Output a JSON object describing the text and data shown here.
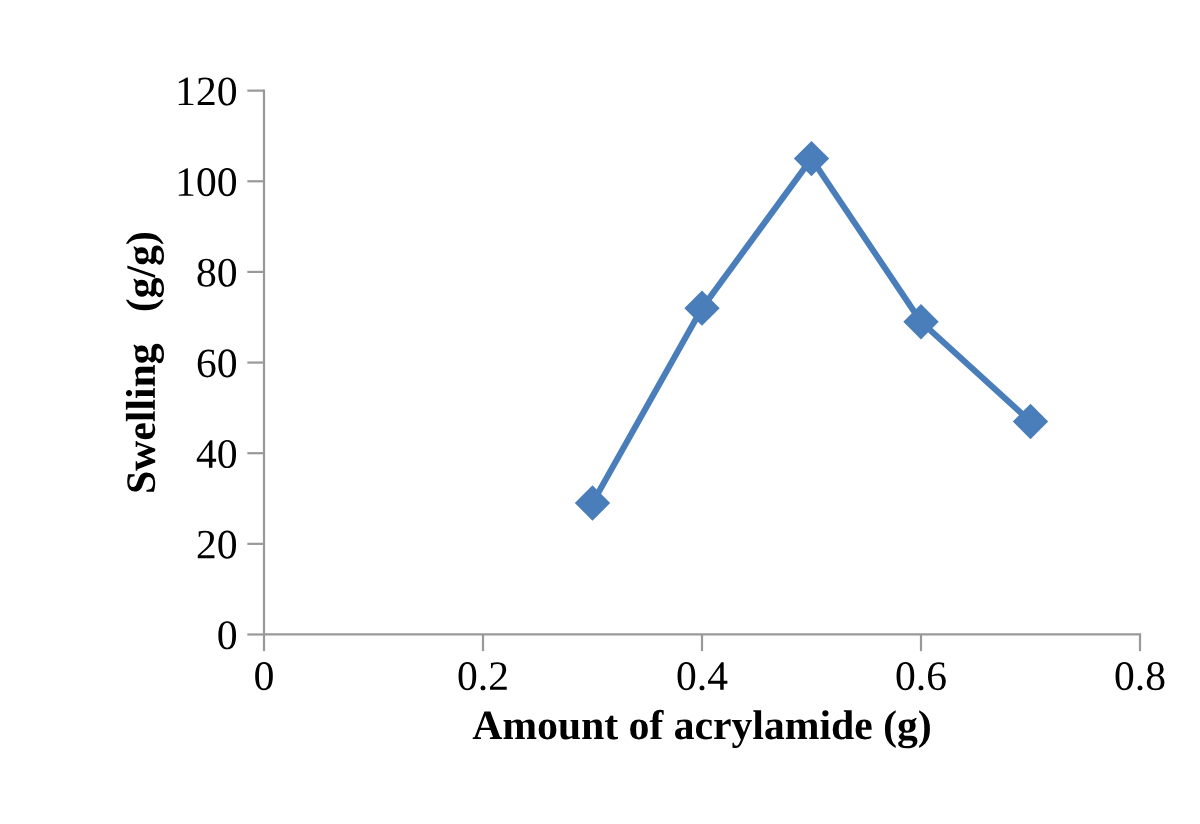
{
  "chart_data": {
    "type": "line",
    "xlabel": "Amount of acrylamide (g)",
    "ylabel": "Swelling   (g/g)",
    "x": [
      0.3,
      0.4,
      0.5,
      0.6,
      0.7
    ],
    "series": [
      {
        "color": "#4a7ebb",
        "values": [
          29,
          72,
          105,
          69,
          47
        ]
      }
    ],
    "xlim": [
      0,
      0.8
    ],
    "xticks": [
      0,
      0.2,
      0.4,
      0.6,
      0.8
    ],
    "ylim": [
      0,
      120
    ],
    "yticks": [
      0,
      20,
      40,
      60,
      80,
      100,
      120
    ],
    "marker": "diamond",
    "line_style": "solid",
    "grid": false
  }
}
